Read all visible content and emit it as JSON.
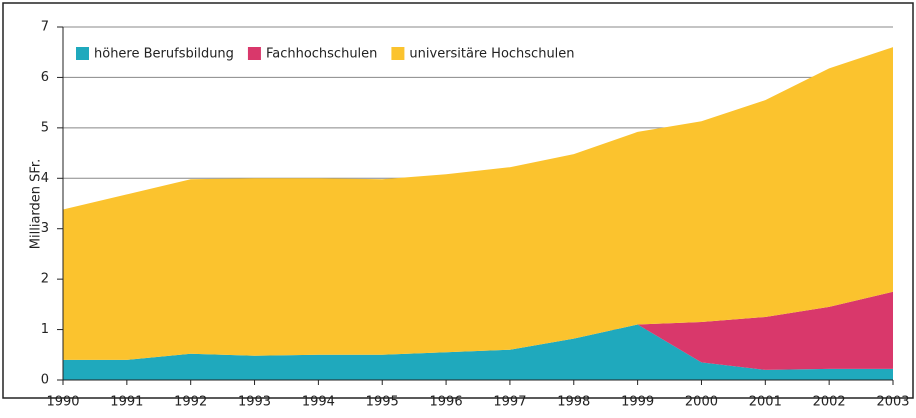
{
  "chart_data": {
    "type": "area",
    "y_label": "Milliarden SFr.",
    "categories": [
      "1990",
      "1991",
      "1992",
      "1993",
      "1994",
      "1995",
      "1996",
      "1997",
      "1998",
      "1999",
      "2000",
      "2001",
      "2002",
      "2003"
    ],
    "series": [
      {
        "name": "höhere Berufsbildung",
        "color": "#1fa9bd",
        "values": [
          0.4,
          0.4,
          0.52,
          0.48,
          0.5,
          0.5,
          0.55,
          0.6,
          0.82,
          1.1,
          0.35,
          0.2,
          0.22,
          0.22
        ]
      },
      {
        "name": "Fachhochschulen",
        "color": "#d9386b",
        "values": [
          0,
          0,
          0,
          0,
          0,
          0,
          0,
          0,
          0,
          0,
          0.8,
          1.05,
          1.23,
          1.53
        ]
      },
      {
        "name": "universitäre Hochschulen",
        "color": "#fbc32e",
        "values": [
          2.98,
          3.28,
          3.46,
          3.52,
          3.5,
          3.48,
          3.53,
          3.62,
          3.66,
          3.82,
          3.98,
          4.3,
          4.73,
          4.85
        ]
      }
    ],
    "stacked": true,
    "ylim": [
      0,
      7
    ],
    "yticks": [
      0,
      1,
      2,
      3,
      4,
      5,
      6,
      7
    ],
    "grid": true
  }
}
